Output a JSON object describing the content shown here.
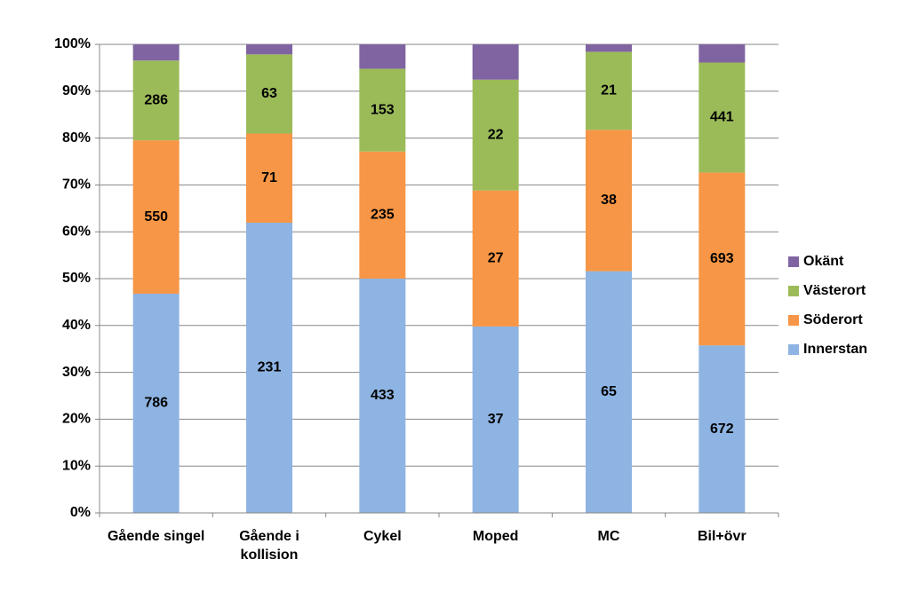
{
  "chart_data": {
    "type": "bar",
    "stacking": "percent",
    "categories": [
      "Gående singel",
      "Gående i kollision",
      "Cykel",
      "Moped",
      "MC",
      "Bil+övr"
    ],
    "series": [
      {
        "name": "Innerstan",
        "color": "#8eb4e3",
        "values": [
          786,
          231,
          433,
          37,
          65,
          672
        ],
        "labels_shown": true
      },
      {
        "name": "Söderort",
        "color": "#f79646",
        "values": [
          550,
          71,
          235,
          27,
          38,
          693
        ],
        "labels_shown": true
      },
      {
        "name": "Västerort",
        "color": "#9bbb59",
        "values": [
          286,
          63,
          153,
          22,
          21,
          441
        ],
        "labels_shown": true
      },
      {
        "name": "Okänt",
        "color": "#8064a2",
        "values": [
          58,
          8,
          45,
          7,
          2,
          73
        ],
        "labels_shown": false
      }
    ],
    "ylim": [
      0,
      100
    ],
    "yticks": [
      {
        "value": 0,
        "label": "0%"
      },
      {
        "value": 10,
        "label": "10%"
      },
      {
        "value": 20,
        "label": "20%"
      },
      {
        "value": 30,
        "label": "30%"
      },
      {
        "value": 40,
        "label": "40%"
      },
      {
        "value": 50,
        "label": "50%"
      },
      {
        "value": 60,
        "label": "60%"
      },
      {
        "value": 70,
        "label": "70%"
      },
      {
        "value": 80,
        "label": "80%"
      },
      {
        "value": 90,
        "label": "90%"
      },
      {
        "value": 100,
        "label": "100%"
      }
    ],
    "grid": true,
    "legend": "right"
  }
}
